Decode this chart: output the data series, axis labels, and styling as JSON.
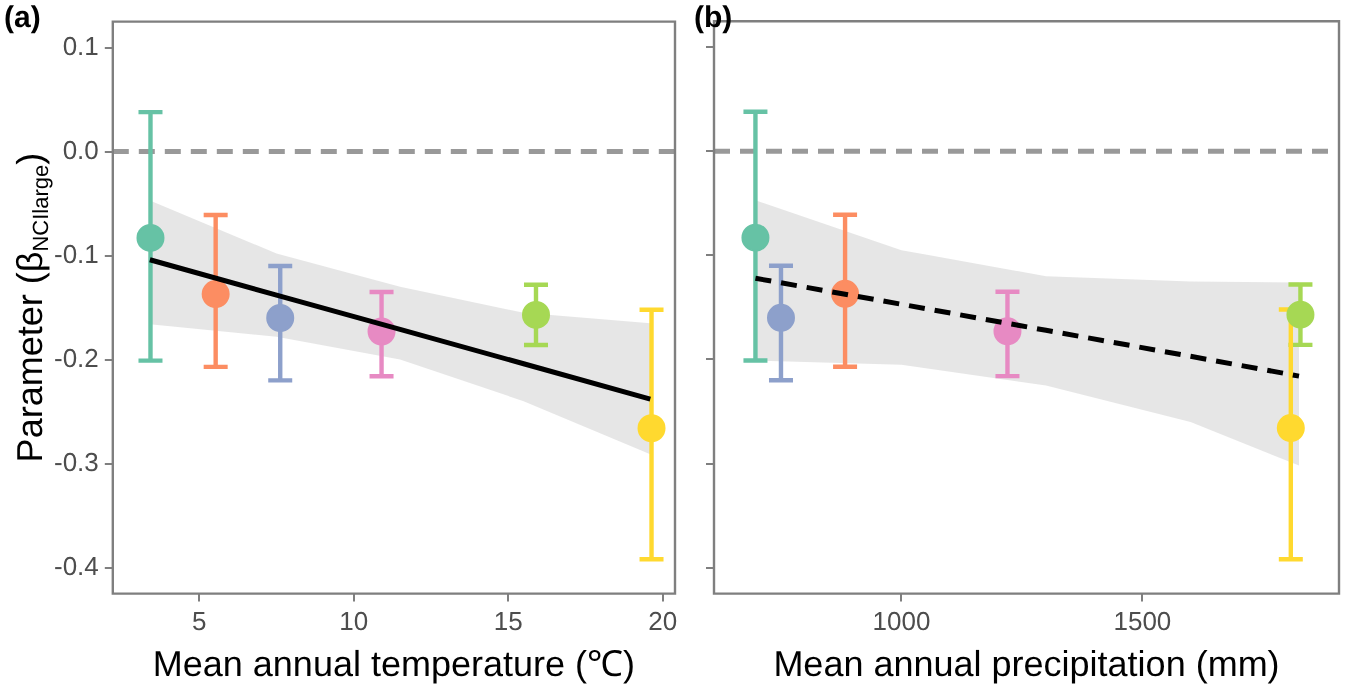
{
  "chart_data": [
    {
      "type": "scatter",
      "xlabel": "Mean annual temperature (℃)",
      "ylabel": "Parameter (β$_{NCI}$$_{large}$)",
      "annotations": [
        "(a)"
      ],
      "xlim": [
        2.2,
        20.4
      ],
      "xticks": [
        5,
        10,
        15,
        20
      ],
      "ylim": [
        -0.425,
        0.125
      ],
      "yticks": [
        -0.4,
        -0.3,
        -0.2,
        -0.1,
        {
          "value": 0,
          "label": "0.0"
        },
        0.1
      ],
      "grid": false,
      "legend": false,
      "ref_lines": [
        {
          "axis": "y",
          "value": 0,
          "label": null,
          "color": "#999999",
          "line_style": "dashed"
        }
      ],
      "series": [
        {
          "marker": "circle",
          "x": [
            3.42,
            5.53,
            7.62,
            10.9,
            15.9,
            19.64
          ],
          "values": [
            -0.083,
            -0.137,
            -0.16,
            -0.173,
            -0.157,
            -0.266
          ],
          "colors": [
            "#66c2a5",
            "#fc8d62",
            "#8da0cb",
            "#e78ac3",
            "#a6d854",
            "#ffd92f"
          ],
          "errors": [
            [
              -0.201,
              0.038
            ],
            [
              -0.207,
              -0.061
            ],
            [
              -0.22,
              -0.11
            ],
            [
              -0.216,
              -0.135
            ],
            [
              -0.186,
              -0.128
            ],
            [
              -0.392,
              -0.152
            ]
          ]
        },
        {
          "type": "line",
          "x": [
            3.4,
            7.5,
            11.5,
            15.5,
            19.6
          ],
          "values": [
            -0.104,
            -0.138,
            -0.171,
            -0.204,
            -0.238
          ],
          "color": "#000000",
          "line_style": "solid",
          "lower": [
            -0.166,
            -0.178,
            -0.2,
            -0.24,
            -0.291
          ],
          "upper": [
            -0.047,
            -0.098,
            -0.13,
            -0.155,
            -0.165
          ]
        }
      ]
    },
    {
      "type": "scatter",
      "xlabel": "Mean annual precipitation (mm)",
      "annotations": [
        "(b)"
      ],
      "xlim": [
        611,
        1908
      ],
      "xticks": [
        1000,
        1500
      ],
      "ylim": [
        -0.425,
        0.125
      ],
      "yticks": [
        -0.4,
        -0.3,
        -0.2,
        -0.1,
        0,
        0.1
      ],
      "tick_labels": "x",
      "grid": false,
      "legend": false,
      "ref_lines": [
        {
          "axis": "y",
          "value": 0,
          "label": null,
          "color": "#999999",
          "line_style": "dashed"
        }
      ],
      "series": [
        {
          "marker": "circle",
          "x": [
            697,
            883,
            750,
            1220,
            1828,
            1808
          ],
          "values": [
            -0.083,
            -0.137,
            -0.16,
            -0.173,
            -0.157,
            -0.266
          ],
          "colors": [
            "#66c2a5",
            "#fc8d62",
            "#8da0cb",
            "#e78ac3",
            "#a6d854",
            "#ffd92f"
          ],
          "errors": [
            [
              -0.201,
              0.038
            ],
            [
              -0.207,
              -0.061
            ],
            [
              -0.22,
              -0.11
            ],
            [
              -0.216,
              -0.135
            ],
            [
              -0.186,
              -0.128
            ],
            [
              -0.392,
              -0.152
            ]
          ]
        },
        {
          "type": "line",
          "x": [
            697,
            1000,
            1300,
            1600,
            1825
          ],
          "values": [
            -0.122,
            -0.147,
            -0.172,
            -0.197,
            -0.216
          ],
          "color": "#000000",
          "line_style": "dashed",
          "lower": [
            -0.201,
            -0.205,
            -0.225,
            -0.26,
            -0.302
          ],
          "upper": [
            -0.047,
            -0.095,
            -0.12,
            -0.125,
            -0.126
          ]
        }
      ]
    }
  ]
}
